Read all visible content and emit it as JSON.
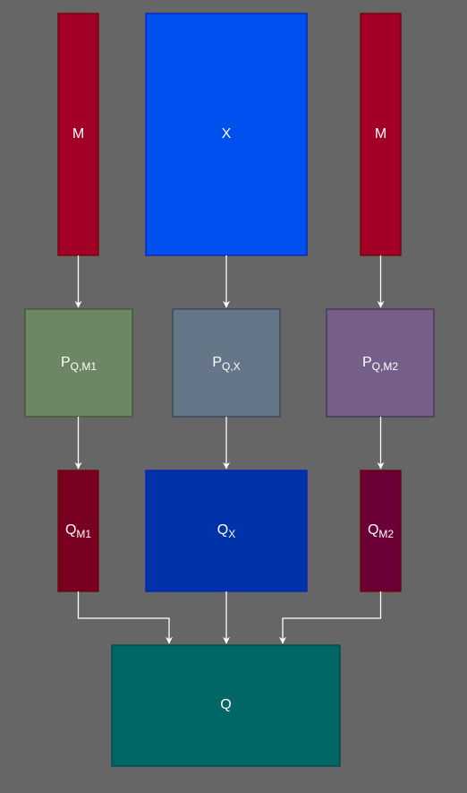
{
  "diagram": {
    "colors": {
      "background": "#666666",
      "m_fill": "#a20025",
      "m_stroke": "#6f0000",
      "x_fill": "#0050ef",
      "x_stroke": "#001dbc",
      "p_m1_fill": "#6d8764",
      "p_m1_stroke": "#3a5431",
      "p_x_fill": "#647687",
      "p_x_stroke": "#314354",
      "p_m2_fill": "#76608a",
      "p_m2_stroke": "#432d57",
      "q_m1_fill": "#7a0021",
      "q_x_fill": "#0033aa",
      "q_m2_fill": "#6a0036",
      "q_fill": "#006666",
      "q_stroke": "#004444",
      "arrow": "#ffffff"
    },
    "nodes": {
      "m_left": {
        "label": "M"
      },
      "x": {
        "label": "X"
      },
      "m_right": {
        "label": "M"
      },
      "p_m1": {
        "label": "P",
        "sub": "Q,M1"
      },
      "p_x": {
        "label": "P",
        "sub": "Q,X"
      },
      "p_m2": {
        "label": "P",
        "sub": "Q,M2"
      },
      "q_m1": {
        "label": "Q",
        "sub": "M1"
      },
      "q_x": {
        "label": "Q",
        "sub": "X"
      },
      "q_m2": {
        "label": "Q",
        "sub": "M2"
      },
      "q": {
        "label": "Q"
      }
    }
  }
}
